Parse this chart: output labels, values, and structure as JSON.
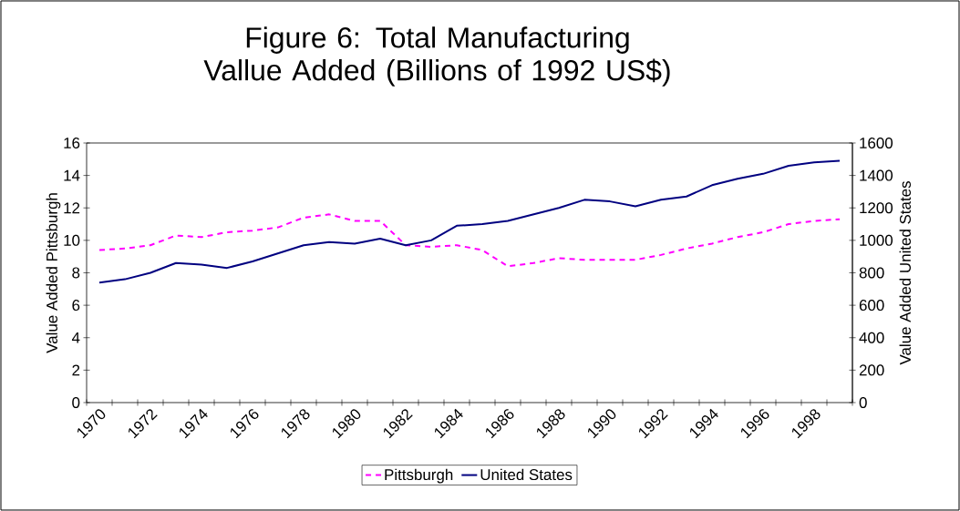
{
  "chart_data": {
    "type": "line",
    "title": "Figure 6: Total Manufacturing Vallue Added (Billions of 1992 US$)",
    "ylabel": "Value Added Pittsburgh",
    "y2label": "Value Added United States",
    "categories": [
      "1970",
      null,
      "1972",
      null,
      "1974",
      null,
      "1976",
      null,
      "1978",
      null,
      "1980",
      null,
      "1982",
      null,
      "1984",
      null,
      "1986",
      null,
      "1988",
      null,
      "1990",
      null,
      "1992",
      null,
      "1994",
      null,
      "1996",
      null,
      "1998",
      null
    ],
    "series": [
      {
        "name": "Pittsburgh",
        "color": "#ff00ff",
        "line_style": "dashed",
        "values": [
          9.4,
          9.5,
          9.7,
          10.3,
          10.2,
          10.5,
          10.6,
          10.8,
          11.4,
          11.6,
          11.2,
          11.2,
          9.7,
          9.6,
          9.7,
          9.4,
          8.4,
          8.6,
          8.9,
          8.8,
          8.8,
          8.8,
          9.1,
          9.5,
          9.8,
          10.2,
          10.5,
          11.0,
          11.2,
          11.3
        ]
      },
      {
        "name": "United States",
        "color": "#000080",
        "line_style": "solid",
        "axis": "y2",
        "values": [
          740,
          760,
          800,
          860,
          850,
          830,
          870,
          920,
          970,
          990,
          980,
          1010,
          970,
          1000,
          1090,
          1100,
          1120,
          1160,
          1200,
          1250,
          1240,
          1210,
          1250,
          1270,
          1340,
          1380,
          1410,
          1460,
          1480,
          1490
        ]
      }
    ],
    "ylim": [
      0,
      16
    ],
    "yticks": [
      0,
      2,
      4,
      6,
      8,
      10,
      12,
      14,
      16
    ],
    "y2lim": [
      0,
      1600
    ],
    "y2ticks": [
      0,
      200,
      400,
      600,
      800,
      1000,
      1200,
      1400,
      1600
    ],
    "legend": "bottom",
    "grid": false
  }
}
